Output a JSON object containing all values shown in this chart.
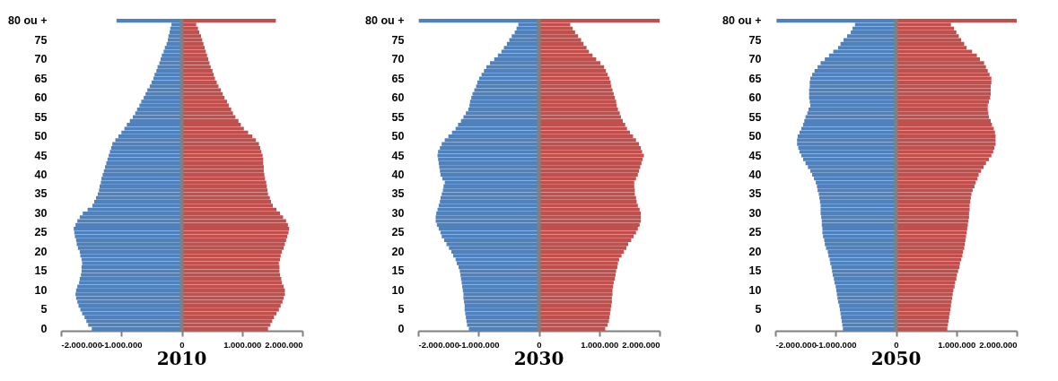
{
  "chart_data": [
    {
      "type": "bar",
      "orientation": "horizontal",
      "stacked": true,
      "title": "2010",
      "categories": [
        "80 ou +",
        null,
        null,
        null,
        null,
        "75",
        null,
        null,
        null,
        null,
        "70",
        null,
        null,
        null,
        null,
        "65",
        null,
        null,
        null,
        null,
        "60",
        null,
        null,
        null,
        null,
        "55",
        null,
        null,
        null,
        null,
        "50",
        null,
        null,
        null,
        null,
        "45",
        null,
        null,
        null,
        null,
        "40",
        null,
        null,
        null,
        null,
        "35",
        null,
        null,
        null,
        null,
        "30",
        null,
        null,
        null,
        null,
        "25",
        null,
        null,
        null,
        null,
        "20",
        null,
        null,
        null,
        null,
        "15",
        null,
        null,
        null,
        null,
        "10",
        null,
        null,
        null,
        null,
        "5",
        null,
        null,
        null,
        null,
        "0"
      ],
      "series": [
        {
          "color": "#4f81bd",
          "values": [
            -1080000,
            -170000,
            -190000,
            -200000,
            -220000,
            -230000,
            -250000,
            -280000,
            -300000,
            -330000,
            -350000,
            -370000,
            -400000,
            -420000,
            -450000,
            -470000,
            -500000,
            -530000,
            -570000,
            -600000,
            -630000,
            -670000,
            -700000,
            -740000,
            -770000,
            -810000,
            -860000,
            -910000,
            -950000,
            -1000000,
            -1050000,
            -1100000,
            -1150000,
            -1170000,
            -1190000,
            -1210000,
            -1230000,
            -1250000,
            -1270000,
            -1290000,
            -1310000,
            -1330000,
            -1340000,
            -1360000,
            -1370000,
            -1390000,
            -1420000,
            -1450000,
            -1480000,
            -1560000,
            -1640000,
            -1690000,
            -1730000,
            -1760000,
            -1790000,
            -1780000,
            -1770000,
            -1750000,
            -1740000,
            -1720000,
            -1690000,
            -1680000,
            -1660000,
            -1650000,
            -1660000,
            -1660000,
            -1670000,
            -1690000,
            -1700000,
            -1730000,
            -1750000,
            -1760000,
            -1750000,
            -1730000,
            -1710000,
            -1680000,
            -1650000,
            -1610000,
            -1580000,
            -1550000,
            -1490000
          ]
        },
        {
          "color": "#c0504d",
          "values": [
            1560000,
            240000,
            270000,
            290000,
            320000,
            340000,
            360000,
            380000,
            400000,
            420000,
            440000,
            460000,
            480000,
            510000,
            530000,
            550000,
            580000,
            610000,
            650000,
            680000,
            710000,
            750000,
            780000,
            820000,
            850000,
            890000,
            940000,
            980000,
            1030000,
            1100000,
            1170000,
            1230000,
            1280000,
            1300000,
            1320000,
            1340000,
            1350000,
            1350000,
            1360000,
            1360000,
            1370000,
            1380000,
            1400000,
            1410000,
            1420000,
            1430000,
            1460000,
            1480000,
            1510000,
            1570000,
            1630000,
            1680000,
            1730000,
            1760000,
            1780000,
            1770000,
            1750000,
            1730000,
            1710000,
            1690000,
            1660000,
            1640000,
            1630000,
            1610000,
            1620000,
            1620000,
            1630000,
            1650000,
            1660000,
            1690000,
            1710000,
            1710000,
            1690000,
            1670000,
            1640000,
            1610000,
            1570000,
            1530000,
            1500000,
            1470000,
            1430000
          ]
        }
      ],
      "xlim": [
        -2000000,
        2000000
      ],
      "xticks": [
        {
          "value": -2000000,
          "label": "-2.000.000"
        },
        {
          "value": -1000000,
          "label": "-1.000.000"
        },
        {
          "value": 0,
          "label": "0"
        },
        {
          "value": 1000000,
          "label": "1.000.000"
        },
        {
          "value": 2000000,
          "label": "2.000.000"
        }
      ],
      "ref_lines": [
        {
          "axis": "x",
          "value": 0,
          "color": "#808080"
        }
      ]
    },
    {
      "type": "bar",
      "orientation": "horizontal",
      "stacked": true,
      "title": "2030",
      "categories": [
        "80 ou +",
        null,
        null,
        null,
        null,
        "75",
        null,
        null,
        null,
        null,
        "70",
        null,
        null,
        null,
        null,
        "65",
        null,
        null,
        null,
        null,
        "60",
        null,
        null,
        null,
        null,
        "55",
        null,
        null,
        null,
        null,
        "50",
        null,
        null,
        null,
        null,
        "45",
        null,
        null,
        null,
        null,
        "40",
        null,
        null,
        null,
        null,
        "35",
        null,
        null,
        null,
        null,
        "30",
        null,
        null,
        null,
        null,
        "25",
        null,
        null,
        null,
        null,
        "20",
        null,
        null,
        null,
        null,
        "15",
        null,
        null,
        null,
        null,
        "10",
        null,
        null,
        null,
        null,
        "5",
        null,
        null,
        null,
        null,
        "0"
      ],
      "series": [
        {
          "color": "#4f81bd",
          "values": [
            -1990000,
            -340000,
            -370000,
            -400000,
            -450000,
            -490000,
            -530000,
            -580000,
            -620000,
            -680000,
            -740000,
            -810000,
            -870000,
            -910000,
            -950000,
            -990000,
            -1020000,
            -1040000,
            -1070000,
            -1100000,
            -1120000,
            -1140000,
            -1150000,
            -1170000,
            -1210000,
            -1250000,
            -1290000,
            -1340000,
            -1380000,
            -1440000,
            -1500000,
            -1560000,
            -1610000,
            -1640000,
            -1670000,
            -1680000,
            -1670000,
            -1660000,
            -1650000,
            -1640000,
            -1630000,
            -1600000,
            -1560000,
            -1580000,
            -1590000,
            -1610000,
            -1630000,
            -1640000,
            -1660000,
            -1680000,
            -1700000,
            -1710000,
            -1710000,
            -1690000,
            -1660000,
            -1630000,
            -1610000,
            -1570000,
            -1530000,
            -1490000,
            -1450000,
            -1420000,
            -1380000,
            -1360000,
            -1330000,
            -1310000,
            -1300000,
            -1290000,
            -1280000,
            -1270000,
            -1260000,
            -1250000,
            -1250000,
            -1240000,
            -1230000,
            -1230000,
            -1220000,
            -1210000,
            -1200000,
            -1190000,
            -1160000
          ]
        },
        {
          "color": "#c0504d",
          "values": [
            2000000,
            520000,
            560000,
            600000,
            650000,
            700000,
            740000,
            790000,
            830000,
            890000,
            950000,
            1020000,
            1080000,
            1110000,
            1140000,
            1170000,
            1190000,
            1200000,
            1220000,
            1240000,
            1260000,
            1280000,
            1290000,
            1310000,
            1340000,
            1360000,
            1390000,
            1430000,
            1460000,
            1510000,
            1560000,
            1610000,
            1660000,
            1690000,
            1710000,
            1740000,
            1720000,
            1700000,
            1680000,
            1660000,
            1640000,
            1610000,
            1580000,
            1580000,
            1590000,
            1590000,
            1610000,
            1620000,
            1640000,
            1670000,
            1690000,
            1690000,
            1690000,
            1670000,
            1640000,
            1610000,
            1570000,
            1530000,
            1480000,
            1450000,
            1410000,
            1370000,
            1330000,
            1310000,
            1300000,
            1280000,
            1270000,
            1260000,
            1240000,
            1230000,
            1220000,
            1220000,
            1210000,
            1210000,
            1200000,
            1190000,
            1180000,
            1170000,
            1160000,
            1140000,
            1100000
          ]
        }
      ],
      "xlim": [
        -2000000,
        2000000
      ],
      "xticks": [
        {
          "value": -2000000,
          "label": "-2.000.000"
        },
        {
          "value": -1000000,
          "label": "-1.000.000"
        },
        0,
        {
          "value": 1000000,
          "label": "1.000.000"
        },
        {
          "value": 2000000,
          "label": "2.000.000"
        }
      ],
      "ref_lines": [
        {
          "axis": "x",
          "value": 0,
          "color": "#808080"
        }
      ]
    },
    {
      "type": "bar",
      "orientation": "horizontal",
      "stacked": true,
      "title": "2050",
      "categories": [
        "80 ou +",
        null,
        null,
        null,
        null,
        "75",
        null,
        null,
        null,
        null,
        "70",
        null,
        null,
        null,
        null,
        "65",
        null,
        null,
        null,
        null,
        "60",
        null,
        null,
        null,
        null,
        "55",
        null,
        null,
        null,
        null,
        "50",
        null,
        null,
        null,
        null,
        "45",
        null,
        null,
        null,
        null,
        "40",
        null,
        null,
        null,
        null,
        "35",
        null,
        null,
        null,
        null,
        "30",
        null,
        null,
        null,
        null,
        "25",
        null,
        null,
        null,
        null,
        "20",
        null,
        null,
        null,
        null,
        "15",
        null,
        null,
        null,
        null,
        "10",
        null,
        null,
        null,
        null,
        "5",
        null,
        null,
        null,
        null,
        "0"
      ],
      "series": [
        {
          "color": "#4f81bd",
          "values": [
            -1980000,
            -680000,
            -720000,
            -750000,
            -810000,
            -870000,
            -920000,
            -960000,
            -1040000,
            -1110000,
            -1180000,
            -1250000,
            -1300000,
            -1350000,
            -1390000,
            -1420000,
            -1430000,
            -1430000,
            -1440000,
            -1440000,
            -1440000,
            -1430000,
            -1420000,
            -1450000,
            -1470000,
            -1500000,
            -1520000,
            -1540000,
            -1570000,
            -1600000,
            -1630000,
            -1640000,
            -1640000,
            -1620000,
            -1600000,
            -1570000,
            -1540000,
            -1500000,
            -1460000,
            -1420000,
            -1390000,
            -1360000,
            -1330000,
            -1310000,
            -1300000,
            -1280000,
            -1270000,
            -1260000,
            -1250000,
            -1250000,
            -1250000,
            -1240000,
            -1230000,
            -1230000,
            -1220000,
            -1220000,
            -1210000,
            -1190000,
            -1180000,
            -1160000,
            -1130000,
            -1120000,
            -1100000,
            -1090000,
            -1070000,
            -1060000,
            -1050000,
            -1030000,
            -1020000,
            -1000000,
            -990000,
            -980000,
            -970000,
            -960000,
            -940000,
            -930000,
            -920000,
            -910000,
            -900000,
            -890000,
            -880000
          ]
        },
        {
          "color": "#c0504d",
          "values": [
            2000000,
            910000,
            960000,
            1000000,
            1040000,
            1080000,
            1130000,
            1170000,
            1260000,
            1340000,
            1390000,
            1460000,
            1490000,
            1520000,
            1550000,
            1580000,
            1580000,
            1570000,
            1570000,
            1570000,
            1560000,
            1540000,
            1520000,
            1520000,
            1530000,
            1540000,
            1570000,
            1590000,
            1620000,
            1640000,
            1650000,
            1650000,
            1650000,
            1630000,
            1610000,
            1580000,
            1540000,
            1490000,
            1450000,
            1410000,
            1370000,
            1350000,
            1320000,
            1300000,
            1270000,
            1250000,
            1240000,
            1230000,
            1220000,
            1220000,
            1210000,
            1210000,
            1200000,
            1190000,
            1180000,
            1170000,
            1160000,
            1150000,
            1140000,
            1130000,
            1110000,
            1100000,
            1080000,
            1060000,
            1050000,
            1030000,
            1010000,
            1000000,
            980000,
            970000,
            950000,
            940000,
            930000,
            920000,
            910000,
            900000,
            890000,
            880000,
            870000,
            860000,
            850000
          ]
        }
      ],
      "xlim": [
        -2000000,
        2000000
      ],
      "xticks": [
        {
          "value": -2000000,
          "label": "-2.000.000"
        },
        {
          "value": -1000000,
          "label": "-1.000.000"
        },
        0,
        {
          "value": 1000000,
          "label": "1.000.000"
        },
        {
          "value": 2000000,
          "label": "2.000.000"
        }
      ],
      "ref_lines": [
        {
          "axis": "x",
          "value": 0,
          "color": "#808080"
        }
      ]
    }
  ]
}
